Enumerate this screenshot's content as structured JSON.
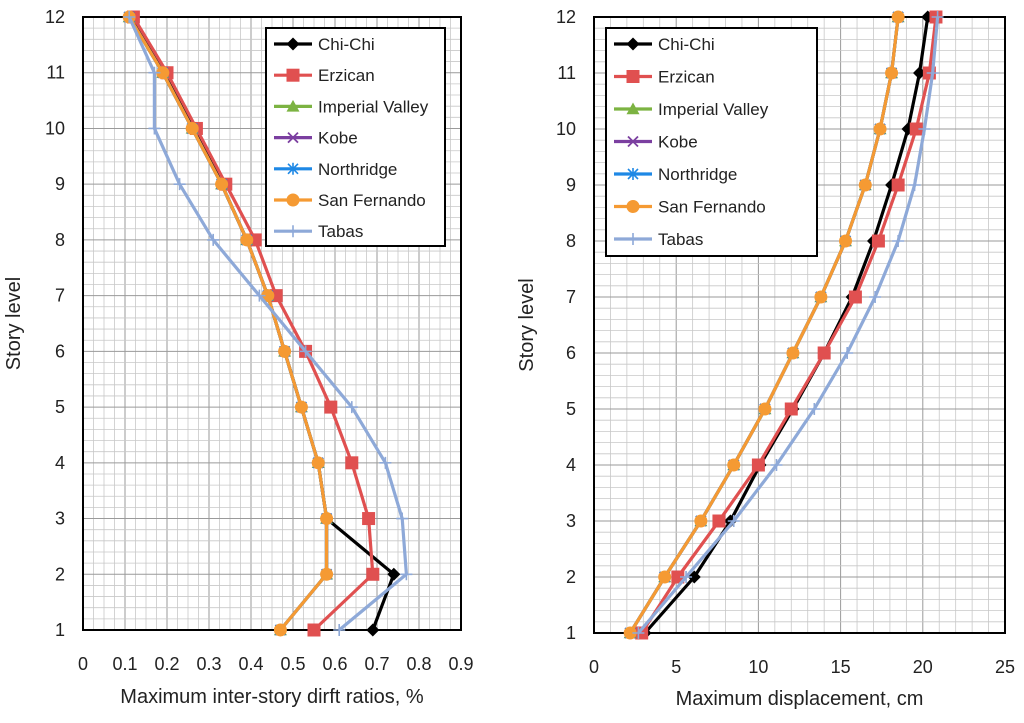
{
  "chart_data": [
    {
      "type": "line",
      "xlabel": "Maximum inter-story dirft ratios, %",
      "ylabel": "Story level",
      "xlim": [
        0,
        0.9
      ],
      "ylim": [
        1,
        12
      ],
      "x_ticks": [
        "0",
        "0.1",
        "0.2",
        "0.3",
        "0.4",
        "0.5",
        "0.6",
        "0.7",
        "0.8",
        "0.9"
      ],
      "y_ticks": [
        "1",
        "2",
        "3",
        "4",
        "5",
        "6",
        "7",
        "8",
        "9",
        "10",
        "11",
        "12"
      ],
      "grid": true,
      "legend_position": "top-right",
      "series": [
        {
          "name": "Chi-Chi",
          "color": "#000000",
          "marker": "diamond",
          "x": [
            0.69,
            0.74,
            0.58,
            0.56,
            0.52,
            0.48,
            0.44,
            0.39,
            0.33,
            0.27,
            0.19,
            0.12
          ],
          "y": [
            1,
            2,
            3,
            4,
            5,
            6,
            7,
            8,
            9,
            10,
            11,
            12
          ]
        },
        {
          "name": "Erzican",
          "color": "#e05050",
          "marker": "square",
          "x": [
            0.55,
            0.69,
            0.68,
            0.64,
            0.59,
            0.53,
            0.46,
            0.41,
            0.34,
            0.27,
            0.2,
            0.12
          ],
          "y": [
            1,
            2,
            3,
            4,
            5,
            6,
            7,
            8,
            9,
            10,
            11,
            12
          ]
        },
        {
          "name": "Imperial Valley",
          "color": "#7cb342",
          "marker": "triangle",
          "x": [
            0.47,
            0.58,
            0.58,
            0.56,
            0.52,
            0.48,
            0.44,
            0.39,
            0.33,
            0.26,
            0.19,
            0.11
          ],
          "y": [
            1,
            2,
            3,
            4,
            5,
            6,
            7,
            8,
            9,
            10,
            11,
            12
          ]
        },
        {
          "name": "Kobe",
          "color": "#7b3fa0",
          "marker": "x",
          "x": [
            0.47,
            0.58,
            0.58,
            0.56,
            0.52,
            0.48,
            0.44,
            0.39,
            0.33,
            0.26,
            0.19,
            0.11
          ],
          "y": [
            1,
            2,
            3,
            4,
            5,
            6,
            7,
            8,
            9,
            10,
            11,
            12
          ]
        },
        {
          "name": "Northridge",
          "color": "#1e88e5",
          "marker": "asterisk",
          "x": [
            0.47,
            0.58,
            0.58,
            0.56,
            0.52,
            0.48,
            0.44,
            0.39,
            0.33,
            0.26,
            0.19,
            0.11
          ],
          "y": [
            1,
            2,
            3,
            4,
            5,
            6,
            7,
            8,
            9,
            10,
            11,
            12
          ]
        },
        {
          "name": "San Fernando",
          "color": "#f59a33",
          "marker": "circle",
          "x": [
            0.47,
            0.58,
            0.58,
            0.56,
            0.52,
            0.48,
            0.44,
            0.39,
            0.33,
            0.26,
            0.19,
            0.11
          ],
          "y": [
            1,
            2,
            3,
            4,
            5,
            6,
            7,
            8,
            9,
            10,
            11,
            12
          ]
        },
        {
          "name": "Tabas",
          "color": "#8ea9d8",
          "marker": "plus",
          "x": [
            0.61,
            0.77,
            0.76,
            0.72,
            0.64,
            0.53,
            0.42,
            0.31,
            0.23,
            0.17,
            0.17,
            0.11
          ],
          "y": [
            1,
            2,
            3,
            4,
            5,
            6,
            7,
            8,
            9,
            10,
            11,
            12
          ]
        }
      ]
    },
    {
      "type": "line",
      "xlabel": "Maximum displacement, cm",
      "ylabel": "Story level",
      "xlim": [
        0,
        25
      ],
      "ylim": [
        1,
        12
      ],
      "x_ticks": [
        "0",
        "5",
        "10",
        "15",
        "20",
        "25"
      ],
      "y_ticks": [
        "1",
        "2",
        "3",
        "4",
        "5",
        "6",
        "7",
        "8",
        "9",
        "10",
        "11",
        "12"
      ],
      "grid": true,
      "legend_position": "top-left",
      "series": [
        {
          "name": "Chi-Chi",
          "color": "#000000",
          "marker": "diamond",
          "x": [
            3.1,
            6.1,
            8.3,
            10.1,
            12.1,
            14.0,
            15.7,
            17.0,
            18.1,
            19.1,
            19.8,
            20.3
          ],
          "y": [
            1,
            2,
            3,
            4,
            5,
            6,
            7,
            8,
            9,
            10,
            11,
            12
          ]
        },
        {
          "name": "Erzican",
          "color": "#e05050",
          "marker": "square",
          "x": [
            2.9,
            5.1,
            7.6,
            10.0,
            12.0,
            14.0,
            15.9,
            17.3,
            18.5,
            19.6,
            20.4,
            20.8
          ],
          "y": [
            1,
            2,
            3,
            4,
            5,
            6,
            7,
            8,
            9,
            10,
            11,
            12
          ]
        },
        {
          "name": "Imperial Valley",
          "color": "#7cb342",
          "marker": "triangle",
          "x": [
            2.2,
            4.3,
            6.5,
            8.5,
            10.4,
            12.1,
            13.8,
            15.3,
            16.5,
            17.4,
            18.1,
            18.5
          ],
          "y": [
            1,
            2,
            3,
            4,
            5,
            6,
            7,
            8,
            9,
            10,
            11,
            12
          ]
        },
        {
          "name": "Kobe",
          "color": "#7b3fa0",
          "marker": "x",
          "x": [
            2.2,
            4.3,
            6.5,
            8.5,
            10.4,
            12.1,
            13.8,
            15.3,
            16.5,
            17.4,
            18.1,
            18.5
          ],
          "y": [
            1,
            2,
            3,
            4,
            5,
            6,
            7,
            8,
            9,
            10,
            11,
            12
          ]
        },
        {
          "name": "Northridge",
          "color": "#1e88e5",
          "marker": "asterisk",
          "x": [
            2.2,
            4.3,
            6.5,
            8.5,
            10.4,
            12.1,
            13.8,
            15.3,
            16.5,
            17.4,
            18.1,
            18.5
          ],
          "y": [
            1,
            2,
            3,
            4,
            5,
            6,
            7,
            8,
            9,
            10,
            11,
            12
          ]
        },
        {
          "name": "San Fernando",
          "color": "#f59a33",
          "marker": "circle",
          "x": [
            2.2,
            4.3,
            6.5,
            8.5,
            10.4,
            12.1,
            13.8,
            15.3,
            16.5,
            17.4,
            18.1,
            18.5
          ],
          "y": [
            1,
            2,
            3,
            4,
            5,
            6,
            7,
            8,
            9,
            10,
            11,
            12
          ]
        },
        {
          "name": "Tabas",
          "color": "#8ea9d8",
          "marker": "plus",
          "x": [
            2.7,
            5.6,
            8.5,
            11.1,
            13.4,
            15.4,
            17.1,
            18.5,
            19.5,
            20.1,
            20.6,
            20.9
          ],
          "y": [
            1,
            2,
            3,
            4,
            5,
            6,
            7,
            8,
            9,
            10,
            11,
            12
          ]
        }
      ]
    }
  ]
}
